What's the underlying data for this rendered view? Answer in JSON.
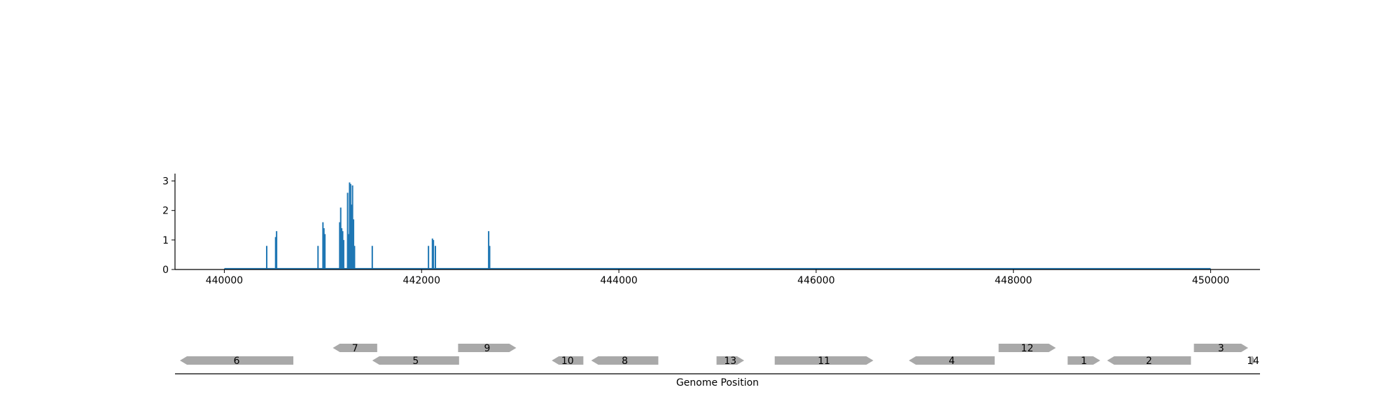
{
  "chart_data": [
    {
      "type": "bar",
      "panel": "coverage",
      "x_range": [
        439500,
        450500
      ],
      "ylim": [
        0,
        3.25
      ],
      "x_ticks": [
        440000,
        442000,
        444000,
        446000,
        448000,
        450000
      ],
      "x_tick_labels": [
        "440000",
        "442000",
        "444000",
        "446000",
        "448000",
        "450000"
      ],
      "y_ticks": [
        0,
        1,
        2,
        3
      ],
      "y_tick_labels": [
        "0",
        "1",
        "2",
        "3"
      ],
      "baseline": [
        440000,
        450000
      ],
      "series": [
        {
          "color": "#1f77b4",
          "x": [
            440430,
            440520,
            440530,
            440950,
            441000,
            441010,
            441020,
            441170,
            441180,
            441190,
            441200,
            441210,
            441250,
            441260,
            441270,
            441280,
            441290,
            441300,
            441310,
            441320,
            441500,
            442070,
            442110,
            442120,
            442140,
            442680,
            442690
          ],
          "values": [
            0.8,
            1.1,
            1.3,
            0.8,
            1.6,
            1.4,
            1.2,
            1.6,
            2.1,
            1.4,
            1.3,
            1.0,
            2.6,
            1.2,
            2.95,
            2.9,
            2.2,
            2.85,
            1.7,
            0.8,
            0.8,
            0.8,
            1.05,
            1.0,
            0.8,
            1.3,
            0.8
          ]
        }
      ],
      "grid": false,
      "legend": "none"
    },
    {
      "type": "gene-map",
      "panel": "annotation",
      "xlabel": "Genome Position",
      "x_range": [
        439500,
        450500
      ],
      "genes": [
        {
          "label": "6",
          "start": 439550,
          "end": 440700,
          "strand": "-",
          "row": 0
        },
        {
          "label": "7",
          "start": 441100,
          "end": 441550,
          "strand": "-",
          "row": 1
        },
        {
          "label": "5",
          "start": 441500,
          "end": 442380,
          "strand": "-",
          "row": 0
        },
        {
          "label": "9",
          "start": 442370,
          "end": 442960,
          "strand": "+",
          "row": 1
        },
        {
          "label": "10",
          "start": 443320,
          "end": 443640,
          "strand": "-",
          "row": 0
        },
        {
          "label": "8",
          "start": 443720,
          "end": 444400,
          "strand": "-",
          "row": 0
        },
        {
          "label": "13",
          "start": 444990,
          "end": 445270,
          "strand": "+",
          "row": 0
        },
        {
          "label": "11",
          "start": 445580,
          "end": 446580,
          "strand": "+",
          "row": 0
        },
        {
          "label": "4",
          "start": 446940,
          "end": 447810,
          "strand": "-",
          "row": 0
        },
        {
          "label": "12",
          "start": 447850,
          "end": 448430,
          "strand": "+",
          "row": 1
        },
        {
          "label": "1",
          "start": 448550,
          "end": 448880,
          "strand": "+",
          "row": 0
        },
        {
          "label": "2",
          "start": 448950,
          "end": 449800,
          "strand": "-",
          "row": 0
        },
        {
          "label": "3",
          "start": 449830,
          "end": 450380,
          "strand": "+",
          "row": 1
        },
        {
          "label": "14",
          "start": 450410,
          "end": 450450,
          "strand": "+",
          "row": 0
        }
      ],
      "gene_color": "#a9a9a9"
    }
  ]
}
